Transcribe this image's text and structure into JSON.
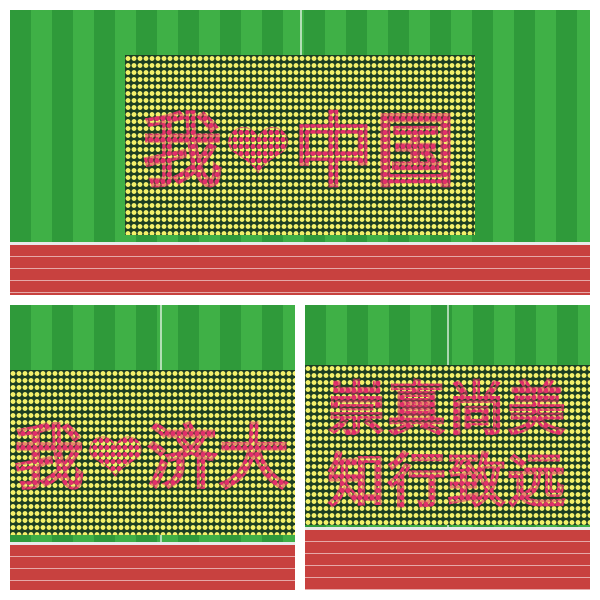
{
  "panels": [
    {
      "name": "top-panel",
      "slogan": "我❤中国"
    },
    {
      "name": "bottom-left-panel",
      "slogan": "我❤济大"
    },
    {
      "name": "bottom-right-panel",
      "slogan_line1": "崇真尚美",
      "slogan_line2": "知行致远"
    }
  ],
  "colors": {
    "field_dark": "#2f9a3a",
    "field_light": "#3fb046",
    "track": "#c8413f",
    "card_yellow": "#f3f06a",
    "card_red": "#e0306a"
  }
}
